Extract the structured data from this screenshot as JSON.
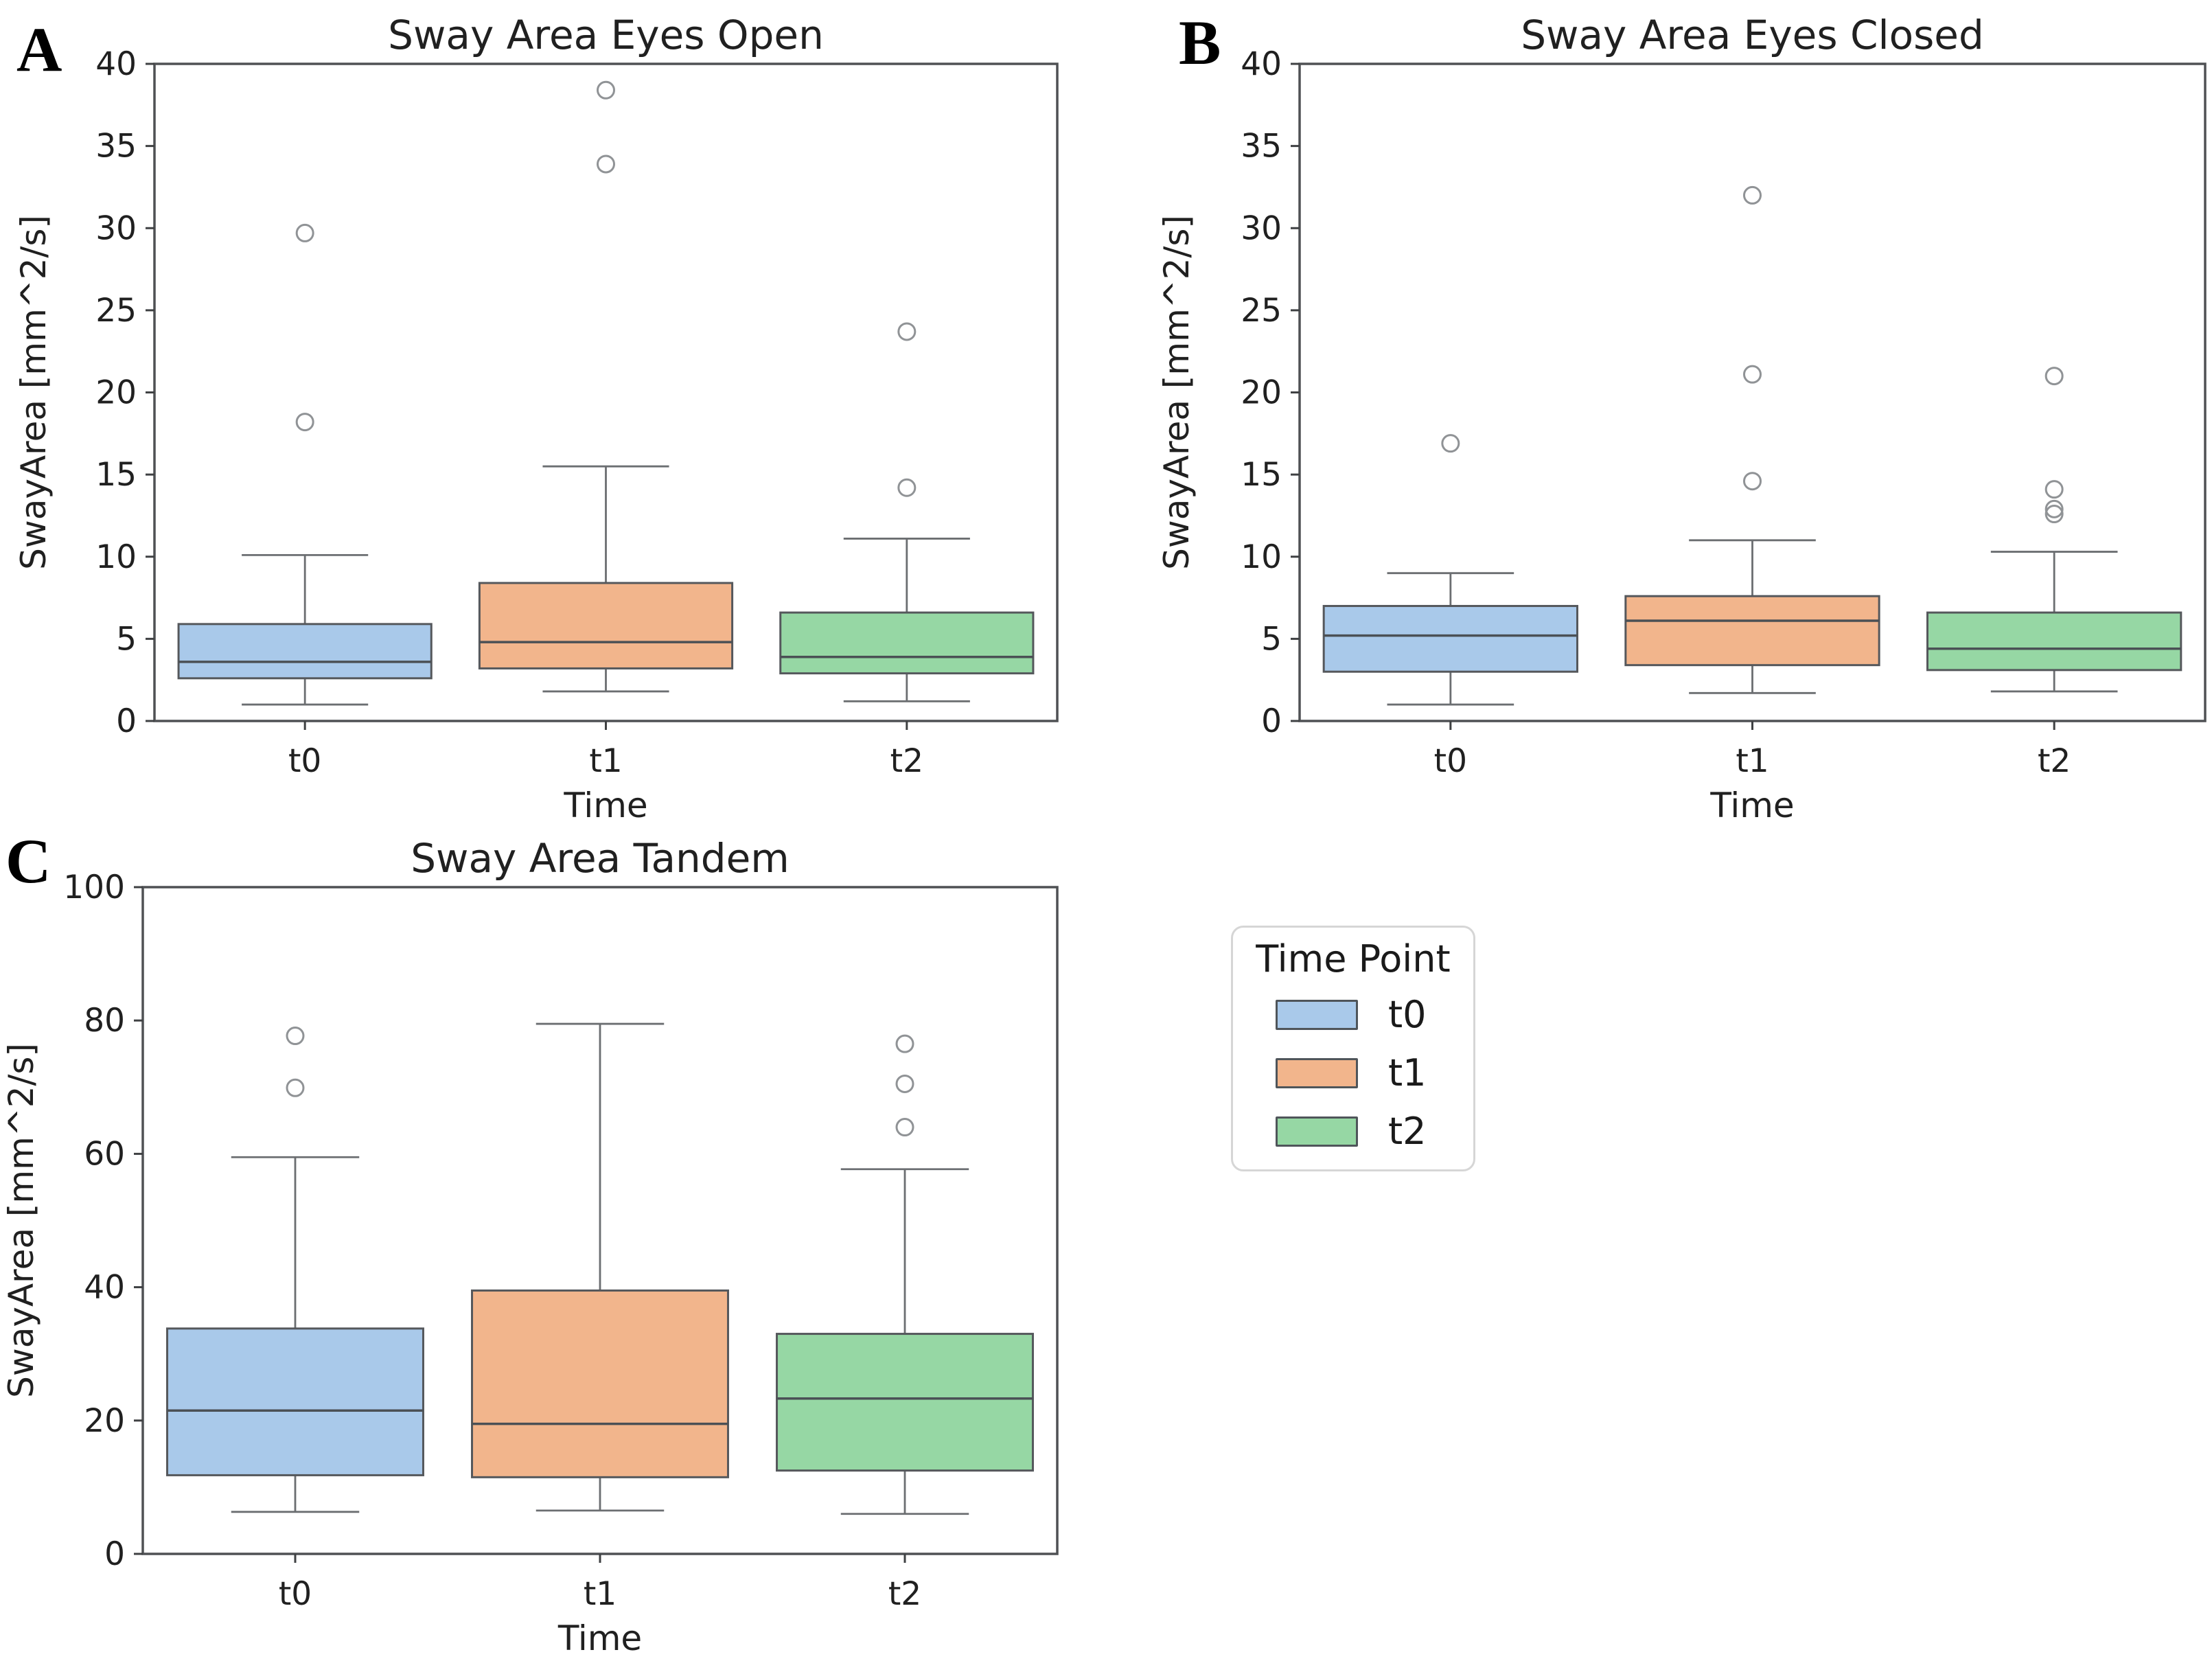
{
  "figure": {
    "background": "#ffffff"
  },
  "colors": {
    "t0": "#a9c9ea",
    "t1": "#f2b58c",
    "t2": "#96d7a4",
    "box_edge": "#55585c",
    "median": "#4b5055",
    "whisker": "#6b6e71",
    "outlier": "#909396",
    "spine": "#4f5154",
    "tick": "#3f4143",
    "text": "#202020"
  },
  "legend": {
    "title": "Time Point",
    "entries": [
      {
        "label": "t0",
        "color": "#a9c9ea"
      },
      {
        "label": "t1",
        "color": "#f2b58c"
      },
      {
        "label": "t2",
        "color": "#96d7a4"
      }
    ]
  },
  "chart_data": [
    {
      "type": "boxplot",
      "panel": "A",
      "title": "Sway Area Eyes Open",
      "xlabel": "Time",
      "ylabel": "SwayArea [mm^2/s]",
      "ylim": [
        0,
        40
      ],
      "yticks": [
        0,
        5,
        10,
        15,
        20,
        25,
        30,
        35,
        40
      ],
      "categories": [
        "t0",
        "t1",
        "t2"
      ],
      "legend_position": "none",
      "grid": false,
      "series": [
        {
          "name": "t0",
          "color_key": "t0",
          "whisker_low": 1.0,
          "q1": 2.6,
          "median": 3.6,
          "q3": 5.9,
          "whisker_high": 10.1,
          "outliers": [
            18.2,
            29.7
          ]
        },
        {
          "name": "t1",
          "color_key": "t1",
          "whisker_low": 1.8,
          "q1": 3.2,
          "median": 4.8,
          "q3": 8.4,
          "whisker_high": 15.5,
          "outliers": [
            33.9,
            38.4
          ]
        },
        {
          "name": "t2",
          "color_key": "t2",
          "whisker_low": 1.2,
          "q1": 2.9,
          "median": 3.9,
          "q3": 6.6,
          "whisker_high": 11.1,
          "outliers": [
            14.2,
            23.7
          ]
        }
      ]
    },
    {
      "type": "boxplot",
      "panel": "B",
      "title": "Sway Area Eyes Closed",
      "xlabel": "Time",
      "ylabel": "SwayArea [mm^2/s]",
      "ylim": [
        0,
        40
      ],
      "yticks": [
        0,
        5,
        10,
        15,
        20,
        25,
        30,
        35,
        40
      ],
      "categories": [
        "t0",
        "t1",
        "t2"
      ],
      "legend_position": "none",
      "grid": false,
      "series": [
        {
          "name": "t0",
          "color_key": "t0",
          "whisker_low": 1.0,
          "q1": 3.0,
          "median": 5.2,
          "q3": 7.0,
          "whisker_high": 9.0,
          "outliers": [
            16.9
          ]
        },
        {
          "name": "t1",
          "color_key": "t1",
          "whisker_low": 1.7,
          "q1": 3.4,
          "median": 6.1,
          "q3": 7.6,
          "whisker_high": 11.0,
          "outliers": [
            14.6,
            21.1,
            32.0
          ]
        },
        {
          "name": "t2",
          "color_key": "t2",
          "whisker_low": 1.8,
          "q1": 3.1,
          "median": 4.4,
          "q3": 6.6,
          "whisker_high": 10.3,
          "outliers": [
            12.6,
            12.9,
            14.1,
            21.0
          ]
        }
      ]
    },
    {
      "type": "boxplot",
      "panel": "C",
      "title": "Sway Area Tandem",
      "xlabel": "Time",
      "ylabel": "SwayArea [mm^2/s]",
      "ylim": [
        0,
        100
      ],
      "yticks": [
        0,
        20,
        40,
        60,
        80,
        100
      ],
      "categories": [
        "t0",
        "t1",
        "t2"
      ],
      "legend_position": "lower-right-cell",
      "grid": false,
      "series": [
        {
          "name": "t0",
          "color_key": "t0",
          "whisker_low": 6.3,
          "q1": 11.8,
          "median": 21.5,
          "q3": 33.8,
          "whisker_high": 59.5,
          "outliers": [
            69.9,
            77.7
          ]
        },
        {
          "name": "t1",
          "color_key": "t1",
          "whisker_low": 6.5,
          "q1": 11.5,
          "median": 19.5,
          "q3": 39.5,
          "whisker_high": 79.5,
          "outliers": []
        },
        {
          "name": "t2",
          "color_key": "t2",
          "whisker_low": 6.0,
          "q1": 12.5,
          "median": 23.3,
          "q3": 33.0,
          "whisker_high": 57.7,
          "outliers": [
            64.0,
            70.5,
            76.5
          ]
        }
      ]
    }
  ]
}
